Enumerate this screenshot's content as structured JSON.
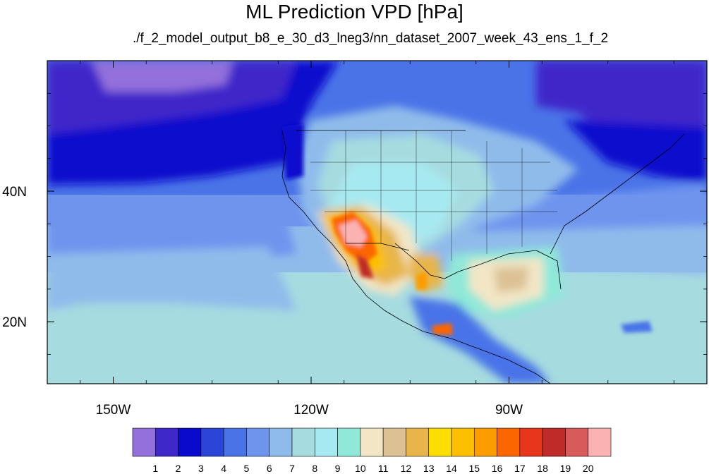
{
  "title": "ML Prediction VPD [hPa]",
  "subtitle": "./f_2_model_output_b8_e_30_d3_lneg3/nn_dataset_2007_week_43_ens_1_f_2",
  "map": {
    "lon_ticks": [
      {
        "value": -150,
        "label": "150W"
      },
      {
        "value": -120,
        "label": "120W"
      },
      {
        "value": -90,
        "label": "90W"
      }
    ],
    "lat_ticks": [
      {
        "value": 40,
        "label": "40N"
      },
      {
        "value": 20,
        "label": "20N"
      }
    ]
  },
  "colorbar": {
    "labels": [
      "1",
      "2",
      "3",
      "4",
      "5",
      "6",
      "7",
      "8",
      "9",
      "10",
      "11",
      "12",
      "13",
      "14",
      "15",
      "16",
      "17",
      "18",
      "19",
      "20"
    ],
    "colors": [
      "#9370db",
      "#3f28c9",
      "#0a0acd",
      "#2b45d9",
      "#4a73e8",
      "#6e94ee",
      "#8fbbeb",
      "#a6dbe0",
      "#a7e9f0",
      "#8fe8d8",
      "#f2e6c6",
      "#dcc195",
      "#e7b54a",
      "#fcdf00",
      "#fdc000",
      "#fc9c00",
      "#fc6600",
      "#e8361c",
      "#be2b28",
      "#d85a5a",
      "#fab2b2"
    ]
  }
}
